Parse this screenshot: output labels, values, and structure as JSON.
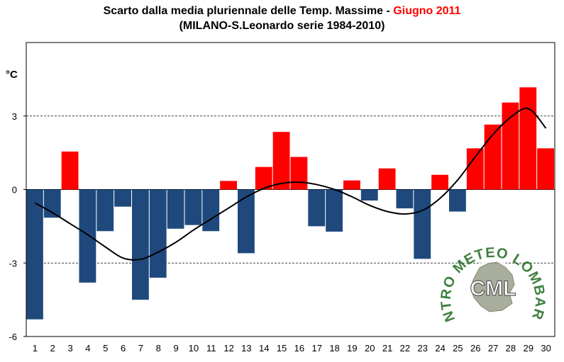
{
  "title": {
    "main": "Scarto dalla media pluriennale delle Temp. Massime - ",
    "highlight": "Giugno 2011",
    "subtitle": "(MILANO-S.Leonardo serie 1984-2010)"
  },
  "colors": {
    "positive": "#ff0000",
    "negative": "#1f497d",
    "trend": "#000000",
    "accent": "#ff0000"
  },
  "chart_data": {
    "type": "bar",
    "ylabel": "°C",
    "ylim": [
      -6,
      6
    ],
    "yticks": [
      3,
      0,
      -3,
      -6
    ],
    "ytick_labels": [
      "3",
      "0",
      "-3",
      "-6"
    ],
    "grid": {
      "dashed_at": [
        3,
        -3
      ]
    },
    "categories": [
      "1",
      "2",
      "3",
      "4",
      "5",
      "6",
      "7",
      "8",
      "9",
      "10",
      "11",
      "12",
      "13",
      "14",
      "15",
      "16",
      "17",
      "18",
      "19",
      "20",
      "21",
      "22",
      "23",
      "24",
      "25",
      "26",
      "27",
      "28",
      "29",
      "30"
    ],
    "values": [
      -5.3,
      -1.15,
      1.55,
      -3.8,
      -1.7,
      -0.7,
      -4.5,
      -3.6,
      -1.6,
      -1.45,
      -1.7,
      0.35,
      -2.6,
      0.92,
      2.35,
      1.33,
      -1.5,
      -1.72,
      0.37,
      -0.45,
      0.86,
      -0.77,
      -2.83,
      0.6,
      -0.9,
      1.68,
      2.65,
      3.55,
      4.17,
      1.68
    ],
    "trend": {
      "type": "line",
      "style": "smooth polynomial trend",
      "values": [
        -0.55,
        -0.95,
        -1.4,
        -1.85,
        -2.35,
        -2.8,
        -2.85,
        -2.55,
        -2.15,
        -1.65,
        -1.2,
        -0.75,
        -0.3,
        0.05,
        0.25,
        0.3,
        0.2,
        0.0,
        -0.3,
        -0.65,
        -0.9,
        -1.0,
        -0.85,
        -0.35,
        0.4,
        1.35,
        2.25,
        2.95,
        3.3,
        2.5
      ]
    }
  },
  "watermark": {
    "arc_text": "CENTRO METEO LOMBARDO",
    "center_text": "CML"
  }
}
